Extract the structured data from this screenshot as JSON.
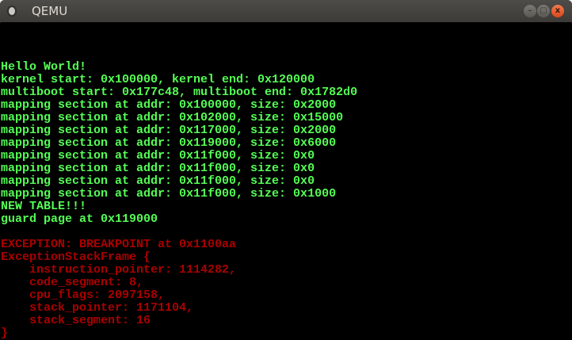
{
  "window": {
    "title": "QEMU",
    "buttons": {
      "minimize": "–",
      "maximize": "□",
      "close": "x"
    }
  },
  "colors": {
    "green": "#55ff55",
    "red": "#aa0000",
    "background": "#000000"
  },
  "console": {
    "lines": [
      {
        "row": 3,
        "color": "green",
        "text": "Hello World!"
      },
      {
        "row": 4,
        "color": "green",
        "text": "kernel start: 0x100000, kernel end: 0x120000"
      },
      {
        "row": 5,
        "color": "green",
        "text": "multiboot start: 0x177c48, multiboot end: 0x1782d0"
      },
      {
        "row": 6,
        "color": "green",
        "text": "mapping section at addr: 0x100000, size: 0x2000"
      },
      {
        "row": 7,
        "color": "green",
        "text": "mapping section at addr: 0x102000, size: 0x15000"
      },
      {
        "row": 8,
        "color": "green",
        "text": "mapping section at addr: 0x117000, size: 0x2000"
      },
      {
        "row": 9,
        "color": "green",
        "text": "mapping section at addr: 0x119000, size: 0x6000"
      },
      {
        "row": 10,
        "color": "green",
        "text": "mapping section at addr: 0x11f000, size: 0x0"
      },
      {
        "row": 11,
        "color": "green",
        "text": "mapping section at addr: 0x11f000, size: 0x0"
      },
      {
        "row": 12,
        "color": "green",
        "text": "mapping section at addr: 0x11f000, size: 0x0"
      },
      {
        "row": 13,
        "color": "green",
        "text": "mapping section at addr: 0x11f000, size: 0x1000"
      },
      {
        "row": 14,
        "color": "green",
        "text": "NEW TABLE!!!"
      },
      {
        "row": 15,
        "color": "green",
        "text": "guard page at 0x119000"
      },
      {
        "row": 17,
        "color": "red",
        "text": "EXCEPTION: BREAKPOINT at 0x1100aa"
      },
      {
        "row": 18,
        "color": "red",
        "text": "ExceptionStackFrame {"
      },
      {
        "row": 19,
        "color": "red",
        "text": "    instruction_pointer: 1114282,"
      },
      {
        "row": 20,
        "color": "red",
        "text": "    code_segment: 8,"
      },
      {
        "row": 21,
        "color": "red",
        "text": "    cpu_flags: 2097158,"
      },
      {
        "row": 22,
        "color": "red",
        "text": "    stack_pointer: 1171104,"
      },
      {
        "row": 23,
        "color": "red",
        "text": "    stack_segment: 16"
      },
      {
        "row": 24,
        "color": "red",
        "text": "}"
      }
    ]
  }
}
